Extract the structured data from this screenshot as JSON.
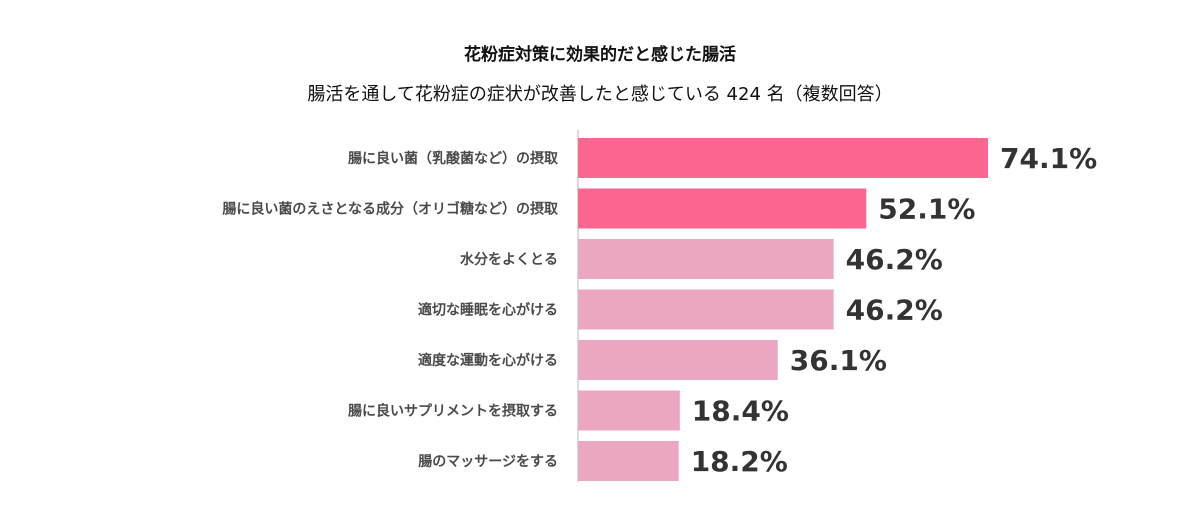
{
  "chart_data": {
    "type": "bar",
    "orientation": "horizontal",
    "title": "花粉症対策に効果的だと感じた腸活",
    "subtitle": "腸活を通して花粉症の症状が改善したと感じている 424 名（複数回答）",
    "categories": [
      "腸に良い菌（乳酸菌など）の摂取",
      "腸に良い菌のえさとなる成分（オリゴ糖など）の摂取",
      "水分をよくとる",
      "適切な睡眠を心がける",
      "適度な運動を心がける",
      "腸に良いサプリメントを摂取する",
      "腸のマッサージをする"
    ],
    "values": [
      74.1,
      52.1,
      46.2,
      46.2,
      36.1,
      18.4,
      18.2
    ],
    "value_labels": [
      "74.1%",
      "52.1%",
      "46.2%",
      "46.2%",
      "36.1%",
      "18.4%",
      "18.2%"
    ],
    "xlim": [
      0,
      100
    ],
    "grid": false,
    "highlight_colors": [
      "#fd6690",
      "#fd6690",
      "#eba7c1",
      "#eba7c1",
      "#eba7c1",
      "#eba7c1",
      "#eba7c1"
    ]
  }
}
